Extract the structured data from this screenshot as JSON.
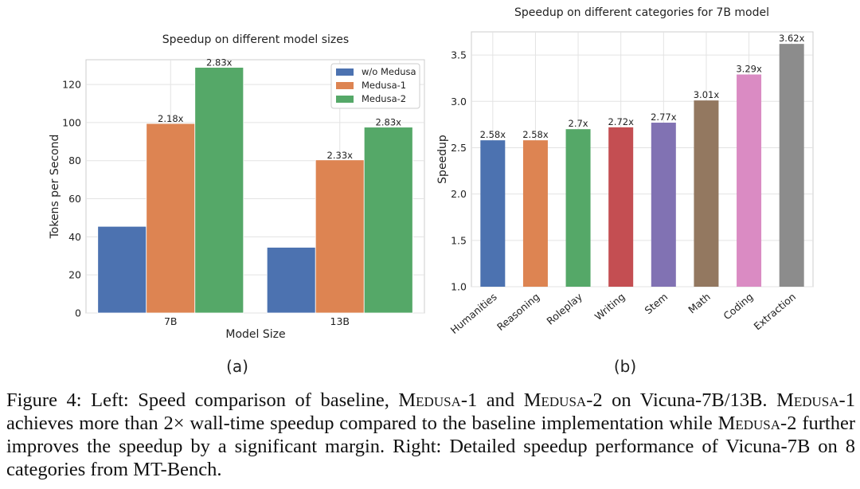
{
  "chart_data": [
    {
      "id": "a",
      "type": "bar",
      "title": "Speedup on different model sizes",
      "xlabel": "Model Size",
      "ylabel": "Tokens per Second",
      "ylim": [
        0,
        133
      ],
      "yticks": [
        0,
        20,
        40,
        60,
        80,
        100,
        120
      ],
      "categories": [
        "7B",
        "13B"
      ],
      "series": [
        {
          "name": "w/o Medusa",
          "color": "#4c72b0",
          "values": [
            45.5,
            34.5
          ],
          "labels": [
            "",
            ""
          ]
        },
        {
          "name": "Medusa-1",
          "color": "#dd8452",
          "values": [
            99.5,
            80.4
          ],
          "labels": [
            "2.18x",
            "2.33x"
          ]
        },
        {
          "name": "Medusa-2",
          "color": "#55a868",
          "values": [
            129.0,
            97.6
          ],
          "labels": [
            "2.83x",
            "2.83x"
          ]
        }
      ],
      "legend_position": "top-right",
      "grid": true,
      "subfigure_label": "(a)"
    },
    {
      "id": "b",
      "type": "bar",
      "title": "Speedup on different categories for 7B model",
      "xlabel": "",
      "ylabel": "Speedup",
      "ylim": [
        1.0,
        3.75
      ],
      "yticks": [
        "1.0",
        "1.5",
        "2.0",
        "2.5",
        "3.0",
        "3.5"
      ],
      "categories": [
        "Humanities",
        "Reasoning",
        "Roleplay",
        "Writing",
        "Stem",
        "Math",
        "Coding",
        "Extraction"
      ],
      "values": [
        2.58,
        2.58,
        2.7,
        2.72,
        2.77,
        3.01,
        3.29,
        3.62
      ],
      "labels": [
        "2.58x",
        "2.58x",
        "2.7x",
        "2.72x",
        "2.77x",
        "3.01x",
        "3.29x",
        "3.62x"
      ],
      "colors": [
        "#4c72b0",
        "#dd8452",
        "#55a868",
        "#c44e52",
        "#8172b3",
        "#937860",
        "#da8bc3",
        "#8c8c8c"
      ],
      "grid": true,
      "subfigure_label": "(b)"
    }
  ],
  "caption": {
    "figure_label": "Figure 4:",
    "p1": " Left: Speed comparison of baseline, ",
    "medusa": "Medusa",
    "s1": "-1 and ",
    "s2": "-2 on Vicuna-7B/13B. ",
    "s3": "-1 achieves more than 2× wall-time speedup compared to the baseline implementation while ",
    "s4": "-2 further improves the speedup by a significant margin. Right: Detailed speedup performance of Vicuna-7B on 8 categories from MT-Bench."
  }
}
